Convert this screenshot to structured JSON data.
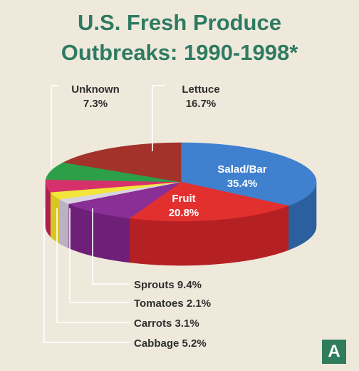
{
  "chart_data": {
    "type": "pie",
    "title_line1": "U.S. Fresh Produce",
    "title_line2": "Outbreaks: 1990-1998*",
    "slices": [
      {
        "label": "Salad/Bar",
        "value": 35.4,
        "value_text": "35.4%",
        "color": "#3f80cf",
        "side_color": "#2b5f9e"
      },
      {
        "label": "Fruit",
        "value": 20.8,
        "value_text": "20.8%",
        "color": "#e2302e",
        "side_color": "#b52022"
      },
      {
        "label": "Sprouts",
        "value": 9.4,
        "value_text": "9.4%",
        "color": "#8a2f96",
        "side_color": "#6e2078"
      },
      {
        "label": "Tomatoes",
        "value": 2.1,
        "value_text": "2.1%",
        "color": "#d9d3e2",
        "side_color": "#b9b2c4"
      },
      {
        "label": "Carrots",
        "value": 3.1,
        "value_text": "3.1%",
        "color": "#f2e63a",
        "side_color": "#d6c820"
      },
      {
        "label": "Cabbage",
        "value": 5.2,
        "value_text": "5.2%",
        "color": "#d6316a",
        "side_color": "#b0204f"
      },
      {
        "label": "Unknown",
        "value": 7.3,
        "value_text": "7.3%",
        "color": "#2e9f49",
        "side_color": "#217a36"
      },
      {
        "label": "Lettuce",
        "value": 16.7,
        "value_text": "16.7%",
        "color": "#a2322a",
        "side_color": "#80241e"
      }
    ]
  },
  "badge": "A",
  "colors": {
    "title": "#2e7b62",
    "label_dark": "#2f2f2f",
    "label_light": "#ffffff",
    "leader": "#ffffff"
  }
}
